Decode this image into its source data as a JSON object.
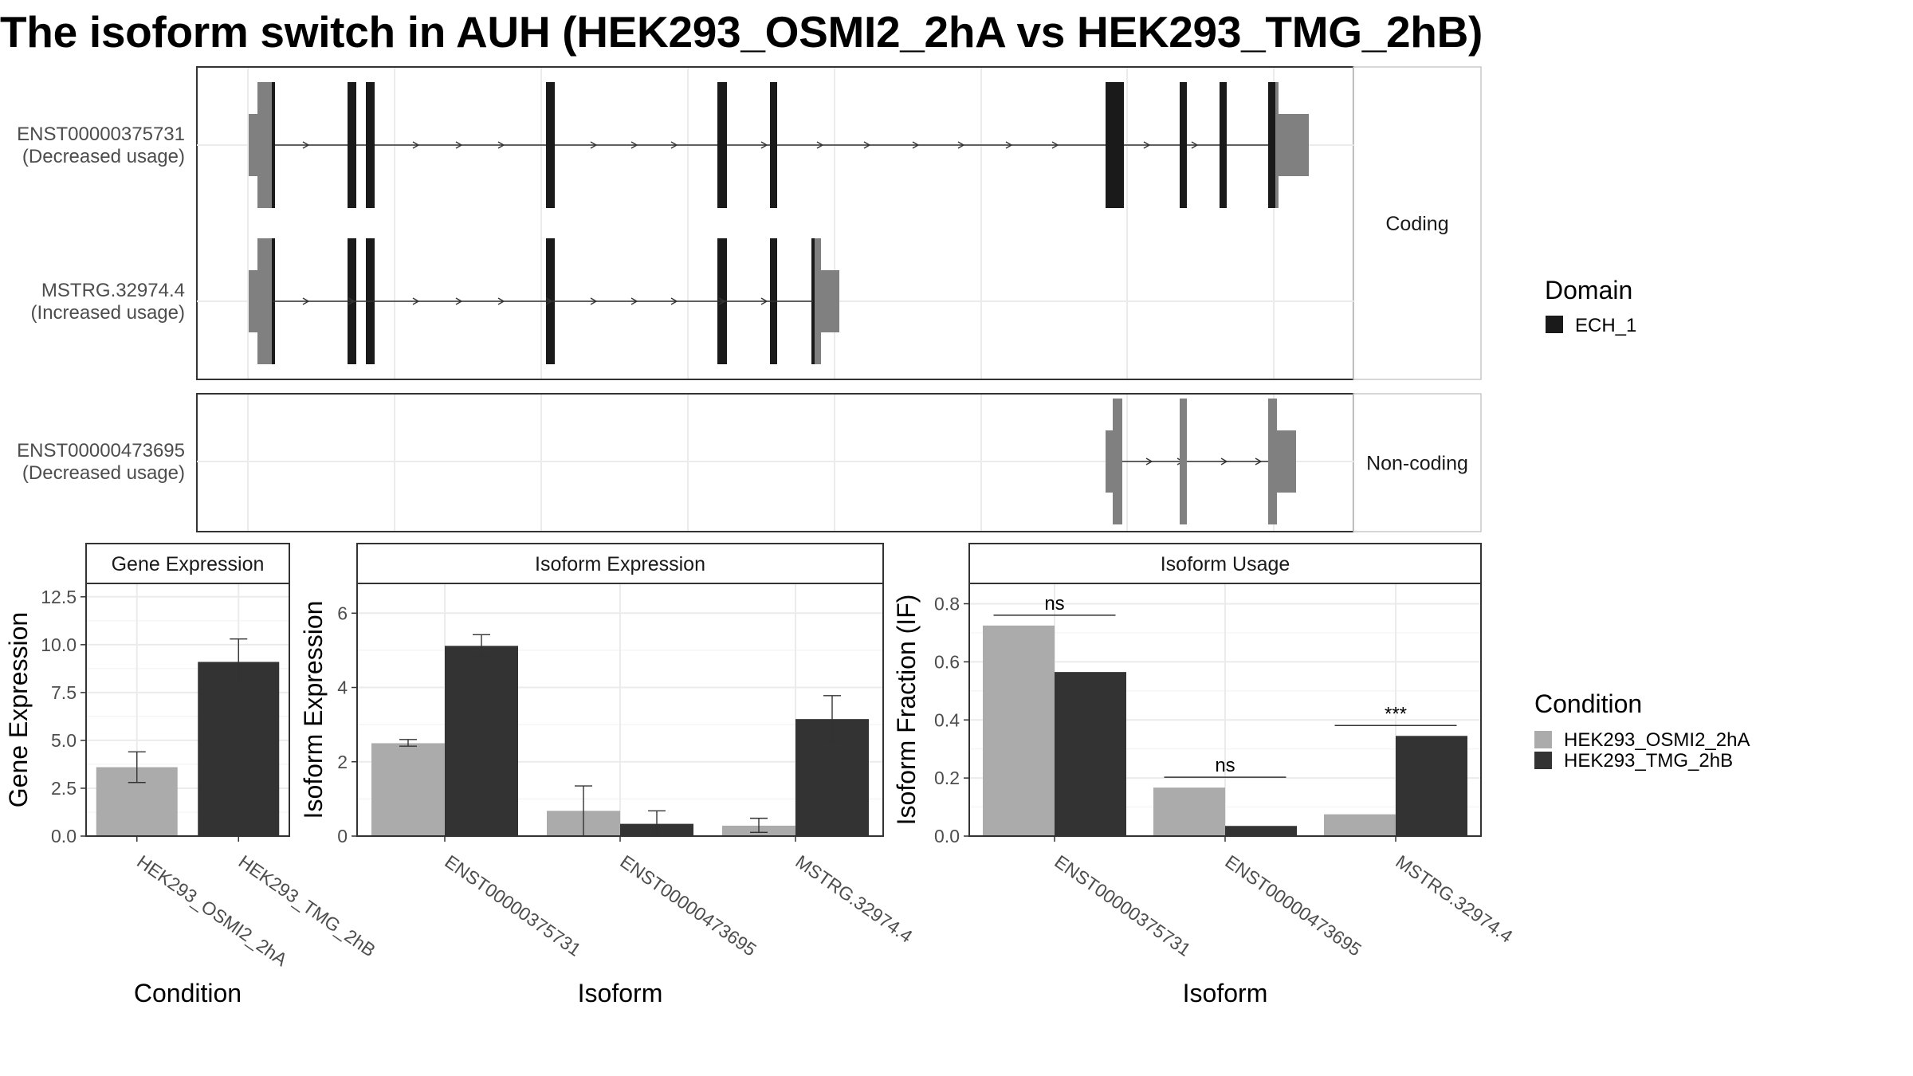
{
  "title": "The isoform switch in AUH (HEK293_OSMI2_2hA vs HEK293_TMG_2hB)",
  "colors": {
    "cond_a": "#ababab",
    "cond_b": "#333333",
    "domain": "#1a1a1a",
    "utr": "#808080",
    "grid": "#ebebeb",
    "panel_border": "#333333",
    "strip_bg": "#ffffff"
  },
  "chart_data": [
    {
      "type": "gene_model",
      "transcripts": [
        {
          "id": "ENST00000375731",
          "label": "ENST00000375731",
          "usage": "(Decreased usage)",
          "group": "Coding"
        },
        {
          "id": "MSTRG.32974.4",
          "label": "MSTRG.32974.4",
          "usage": "(Increased usage)",
          "group": "Coding"
        },
        {
          "id": "ENST00000473695",
          "label": "ENST00000473695",
          "usage": "(Decreased usage)",
          "group": "Non-coding"
        }
      ],
      "groups": [
        "Coding",
        "Non-coding"
      ],
      "legend": {
        "title": "Domain",
        "entries": [
          "ECH_1"
        ]
      }
    },
    {
      "type": "bar",
      "panel": "Gene Expression",
      "categories": [
        "HEK293_OSMI2_2hA",
        "HEK293_TMG_2hB"
      ],
      "values": [
        3.6,
        9.1
      ],
      "errors_low": [
        2.8,
        7.9
      ],
      "errors_high": [
        4.4,
        10.3
      ],
      "xlabel": "Condition",
      "ylabel": "Gene Expression",
      "ylim": [
        0,
        13.2
      ],
      "yticks": [
        0.0,
        2.5,
        5.0,
        7.5,
        10.0,
        12.5
      ],
      "ytick_labels": [
        "0.0",
        "2.5",
        "5.0",
        "7.5",
        "10.0",
        "12.5"
      ]
    },
    {
      "type": "bar",
      "panel": "Isoform Expression",
      "categories": [
        "ENST00000375731",
        "ENST00000473695",
        "MSTRG.32974.4"
      ],
      "series": [
        {
          "name": "HEK293_OSMI2_2hA",
          "values": [
            2.5,
            0.68,
            0.28
          ],
          "err_low": [
            2.42,
            0.0,
            0.1
          ],
          "err_high": [
            2.6,
            1.35,
            0.48
          ]
        },
        {
          "name": "HEK293_TMG_2hB",
          "values": [
            5.12,
            0.33,
            3.15
          ],
          "err_low": [
            4.85,
            0.0,
            2.55
          ],
          "err_high": [
            5.42,
            0.68,
            3.78
          ]
        }
      ],
      "xlabel": "Isoform",
      "ylabel": "Isoform Expression",
      "ylim": [
        0,
        6.8
      ],
      "yticks": [
        0,
        2,
        4,
        6
      ],
      "ytick_labels": [
        "0",
        "2",
        "4",
        "6"
      ]
    },
    {
      "type": "bar",
      "panel": "Isoform Usage",
      "categories": [
        "ENST00000375731",
        "ENST00000473695",
        "MSTRG.32974.4"
      ],
      "series": [
        {
          "name": "HEK293_OSMI2_2hA",
          "values": [
            0.725,
            0.167,
            0.075
          ]
        },
        {
          "name": "HEK293_TMG_2hB",
          "values": [
            0.565,
            0.035,
            0.345
          ]
        }
      ],
      "significance": [
        "ns",
        "ns",
        "***"
      ],
      "xlabel": "Isoform",
      "ylabel": "Isoform Fraction (IF)",
      "ylim": [
        0,
        0.87
      ],
      "yticks": [
        0.0,
        0.2,
        0.4,
        0.6,
        0.8
      ],
      "ytick_labels": [
        "0.0",
        "0.2",
        "0.4",
        "0.6",
        "0.8"
      ]
    }
  ],
  "condition_legend": {
    "title": "Condition",
    "entries": [
      "HEK293_OSMI2_2hA",
      "HEK293_TMG_2hB"
    ]
  }
}
